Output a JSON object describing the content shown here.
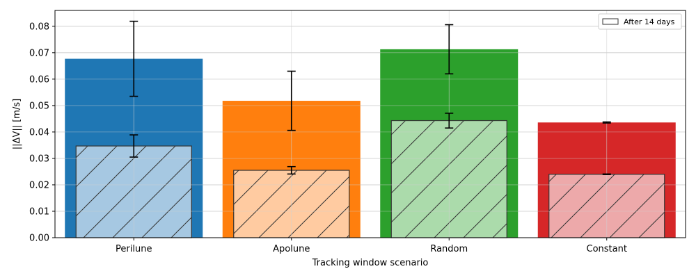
{
  "chart_data": {
    "type": "bar",
    "title": "",
    "xlabel": "Tracking window scenario",
    "ylabel": "||ΔV|| [m/s]",
    "categories": [
      "Perilune",
      "Apolune",
      "Random",
      "Constant"
    ],
    "ylim": [
      0,
      0.086
    ],
    "yticks": [
      0.0,
      0.01,
      0.02,
      0.03,
      0.04,
      0.05,
      0.06,
      0.07,
      0.08
    ],
    "ytick_labels": [
      "0.00",
      "0.01",
      "0.02",
      "0.03",
      "0.04",
      "0.05",
      "0.06",
      "0.07",
      "0.08"
    ],
    "grid": true,
    "legend_position": "top-right",
    "colors": [
      "#1f77b4",
      "#ff7f0e",
      "#2ca02c",
      "#d62728"
    ],
    "light_colors": [
      "#a6c8e2",
      "#ffcba1",
      "#abdbab",
      "#eda9aa"
    ],
    "series": [
      {
        "name": "",
        "style": "solid",
        "values": [
          0.0677,
          0.0518,
          0.0713,
          0.0436
        ],
        "errors": [
          0.0142,
          0.0112,
          0.0093,
          0.0002
        ]
      },
      {
        "name": "After 14 days",
        "style": "hatched",
        "values": [
          0.0347,
          0.0255,
          0.0443,
          0.024
        ],
        "errors": [
          0.0042,
          0.0014,
          0.0028,
          0.0001
        ]
      }
    ]
  }
}
